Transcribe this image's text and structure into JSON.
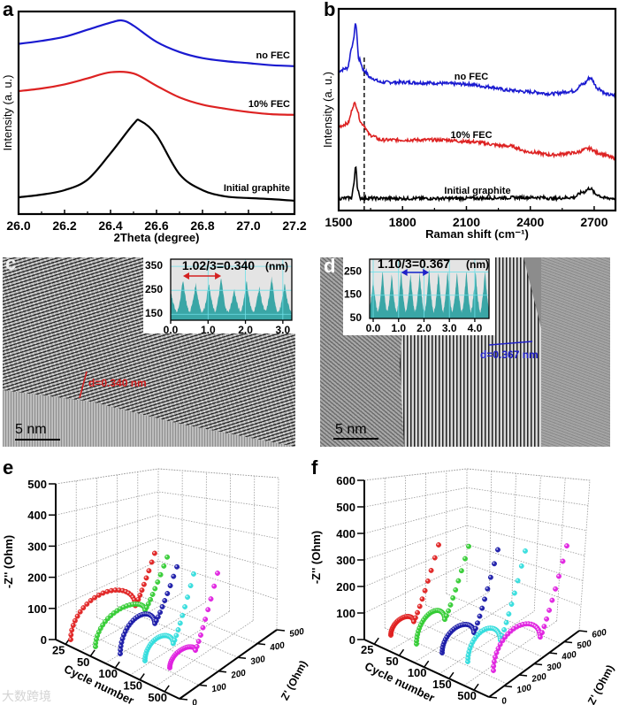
{
  "figure": {
    "panel_labels": {
      "a": "a",
      "b": "b",
      "c": "c",
      "d": "d",
      "e": "e",
      "f": "f"
    },
    "watermark": "大数跨境"
  },
  "tem": {
    "c": {
      "annotation": "d=0.340 nm",
      "scale_bar": "5 nm",
      "annotation_color": "#d42020"
    },
    "d": {
      "annotation": "d=0.367 nm",
      "scale_bar": "5 nm",
      "annotation_color": "#2020c8"
    }
  },
  "chart_data": [
    {
      "id": "a",
      "type": "line",
      "xlabel": "2Theta (degree)",
      "ylabel": "Intensity (a. u.)",
      "xlim": [
        26.0,
        27.2
      ],
      "ylim": [
        0,
        100
      ],
      "xticks": [
        {
          "value": 26.0,
          "label": "26.0"
        },
        {
          "value": 26.2,
          "label": "26.2"
        },
        {
          "value": 26.4,
          "label": "26.4"
        },
        {
          "value": 26.6,
          "label": "26.6"
        },
        {
          "value": 26.8,
          "label": "26.8"
        },
        {
          "value": 27.0,
          "label": "27.0"
        },
        {
          "value": 27.2,
          "label": "27.2"
        }
      ],
      "series": [
        {
          "name": "no FEC",
          "color": "#1a1ad0",
          "points": [
            [
              26.0,
              84
            ],
            [
              26.1,
              85.5
            ],
            [
              26.2,
              87.5
            ],
            [
              26.3,
              91
            ],
            [
              26.4,
              94.5
            ],
            [
              26.45,
              95.6
            ],
            [
              26.5,
              93
            ],
            [
              26.6,
              85
            ],
            [
              26.7,
              80
            ],
            [
              26.8,
              77
            ],
            [
              26.9,
              75.5
            ],
            [
              27.0,
              74.5
            ],
            [
              27.1,
              73.5
            ],
            [
              27.2,
              73
            ]
          ]
        },
        {
          "name": "10% FEC",
          "color": "#dd2222",
          "points": [
            [
              26.0,
              60.7
            ],
            [
              26.1,
              62
            ],
            [
              26.2,
              64
            ],
            [
              26.3,
              67
            ],
            [
              26.4,
              70
            ],
            [
              26.5,
              69.4
            ],
            [
              26.6,
              63.3
            ],
            [
              26.7,
              57.6
            ],
            [
              26.8,
              54
            ],
            [
              26.9,
              52
            ],
            [
              27.0,
              50.4
            ],
            [
              27.1,
              49.3
            ],
            [
              27.2,
              49
            ]
          ]
        },
        {
          "name": "Initial graphite",
          "color": "#000000",
          "points": [
            [
              26.0,
              8.3
            ],
            [
              26.1,
              9.6
            ],
            [
              26.2,
              11.8
            ],
            [
              26.3,
              17
            ],
            [
              26.4,
              30
            ],
            [
              26.5,
              44.5
            ],
            [
              26.53,
              46
            ],
            [
              26.6,
              38.9
            ],
            [
              26.7,
              19.7
            ],
            [
              26.8,
              11.8
            ],
            [
              26.9,
              8.7
            ],
            [
              27.0,
              7.9
            ],
            [
              27.1,
              7.4
            ],
            [
              27.2,
              6.6
            ]
          ]
        }
      ]
    },
    {
      "id": "b",
      "type": "line",
      "xlabel": "Raman shift (cm⁻¹)",
      "ylabel": "Intensity (a. u.)",
      "xlim": [
        1500,
        2800
      ],
      "ylim": [
        0,
        100
      ],
      "dashed_line_x": 1620,
      "xticks": [
        {
          "value": 1500,
          "label": "1500"
        },
        {
          "value": 1800,
          "label": "1800"
        },
        {
          "value": 2100,
          "label": "2100"
        },
        {
          "value": 2400,
          "label": "2400"
        },
        {
          "value": 2700,
          "label": "2700"
        }
      ],
      "series": [
        {
          "name": "no FEC",
          "color": "#1a1ad0",
          "points": [
            [
              1500,
              69.3
            ],
            [
              1540,
              70.6
            ],
            [
              1565,
              82
            ],
            [
              1580,
              92.5
            ],
            [
              1595,
              75
            ],
            [
              1620,
              69.3
            ],
            [
              1650,
              65.8
            ],
            [
              1700,
              63.6
            ],
            [
              1800,
              63.6
            ],
            [
              1900,
              63.3
            ],
            [
              2100,
              62.7
            ],
            [
              2200,
              61.4
            ],
            [
              2300,
              59.6
            ],
            [
              2400,
              58.8
            ],
            [
              2500,
              57.9
            ],
            [
              2600,
              59.2
            ],
            [
              2650,
              62.7
            ],
            [
              2680,
              65.8
            ],
            [
              2720,
              60.5
            ],
            [
              2760,
              57.5
            ],
            [
              2800,
              57
            ]
          ]
        },
        {
          "name": "10% FEC",
          "color": "#dd2222",
          "points": [
            [
              1500,
              41.7
            ],
            [
              1540,
              43
            ],
            [
              1575,
              53
            ],
            [
              1610,
              43
            ],
            [
              1650,
              37.3
            ],
            [
              1700,
              35
            ],
            [
              2000,
              35
            ],
            [
              2100,
              34.2
            ],
            [
              2300,
              32
            ],
            [
              2400,
              29
            ],
            [
              2500,
              27.6
            ],
            [
              2600,
              28.5
            ],
            [
              2680,
              30.7
            ],
            [
              2720,
              28.5
            ],
            [
              2800,
              25.9
            ]
          ]
        },
        {
          "name": "Initial graphite",
          "color": "#000000",
          "points": [
            [
              1500,
              6
            ],
            [
              1560,
              6.3
            ],
            [
              1570,
              12
            ],
            [
              1580,
              22.4
            ],
            [
              1590,
              10
            ],
            [
              1600,
              6.2
            ],
            [
              1700,
              6
            ],
            [
              2000,
              6
            ],
            [
              2450,
              6.5
            ],
            [
              2500,
              6
            ],
            [
              2600,
              6.5
            ],
            [
              2650,
              9.2
            ],
            [
              2680,
              11
            ],
            [
              2710,
              8
            ],
            [
              2750,
              6.2
            ],
            [
              2800,
              6
            ]
          ]
        }
      ]
    },
    {
      "id": "c-inset",
      "type": "area",
      "title": "1.02/3=0.340",
      "unit": "(nm)",
      "xlim": [
        0,
        3.24
      ],
      "ylim": [
        125,
        380
      ],
      "fill": "#3aa6a6",
      "arrow_color": "#d42020",
      "arrow_range": [
        0.33,
        1.35
      ],
      "xticks": [
        {
          "value": 0,
          "label": "0.0"
        },
        {
          "value": 1,
          "label": "1.0"
        },
        {
          "value": 2,
          "label": "2.0"
        },
        {
          "value": 3,
          "label": "3.0"
        }
      ],
      "yticks": [
        {
          "value": 150,
          "label": "150"
        },
        {
          "value": 250,
          "label": "250"
        },
        {
          "value": 350,
          "label": "350"
        }
      ],
      "period": 0.34,
      "base": 160,
      "peaks": [
        [
          0.0,
          245
        ],
        [
          0.33,
          300
        ],
        [
          0.67,
          280
        ],
        [
          1.02,
          280
        ],
        [
          1.35,
          305
        ],
        [
          1.7,
          255
        ],
        [
          2.03,
          290
        ],
        [
          2.37,
          265
        ],
        [
          2.7,
          305
        ],
        [
          3.05,
          280
        ]
      ]
    },
    {
      "id": "d-inset",
      "type": "area",
      "title": "1.10/3=0.367",
      "unit": "(nm)",
      "xlim": [
        -0.14,
        4.56
      ],
      "ylim": [
        50,
        305
      ],
      "fill": "#3aa6a6",
      "arrow_color": "#2020c8",
      "arrow_range": [
        1.1,
        2.2
      ],
      "xticks": [
        {
          "value": 0,
          "label": "0.0"
        },
        {
          "value": 1,
          "label": "1.0"
        },
        {
          "value": 2,
          "label": "2.0"
        },
        {
          "value": 3,
          "label": "3.0"
        },
        {
          "value": 4,
          "label": "4.0"
        }
      ],
      "yticks": [
        {
          "value": 50,
          "label": "50"
        },
        {
          "value": 150,
          "label": "150"
        },
        {
          "value": 250,
          "label": "250"
        }
      ],
      "period": 0.367,
      "base": 80,
      "peaks": [
        [
          0.0,
          220
        ],
        [
          0.37,
          255
        ],
        [
          0.73,
          245
        ],
        [
          1.1,
          260
        ],
        [
          1.47,
          245
        ],
        [
          1.83,
          250
        ],
        [
          2.2,
          265
        ],
        [
          2.57,
          255
        ],
        [
          2.93,
          260
        ],
        [
          3.3,
          250
        ],
        [
          3.67,
          255
        ],
        [
          4.03,
          255
        ],
        [
          4.4,
          260
        ]
      ]
    },
    {
      "id": "e",
      "type": "scatter3d",
      "xlabel": "Cycle number",
      "ylabel": "Z' (Ohm)",
      "zlabel": "-Z'' (Ohm)",
      "cycle_labels": [
        "25",
        "50",
        "100",
        "150",
        "500"
      ],
      "zprime_ticks": [
        "0",
        "100",
        "200",
        "300",
        "400",
        "500"
      ],
      "zprime_max": 500,
      "vertical_ticks": [
        "0",
        "100",
        "200",
        "300",
        "400",
        "500"
      ],
      "vertical_max": 500,
      "series": [
        {
          "cycle": "25",
          "color": "#e02020",
          "Rct": 348,
          "arc_peak": 125,
          "arc_end": 60,
          "tail_end": [
            452,
            214
          ]
        },
        {
          "cycle": "50",
          "color": "#33cc33",
          "Rct": 267,
          "arc_peak": 103,
          "arc_end": 80,
          "tail_end": [
            386,
            234
          ]
        },
        {
          "cycle": "100",
          "color": "#1a1aa8",
          "Rct": 186,
          "arc_peak": 106,
          "arc_end": 71,
          "tail_end": [
            305,
            237
          ]
        },
        {
          "cycle": "150",
          "color": "#33dddd",
          "Rct": 152,
          "arc_peak": 66,
          "arc_end": 34,
          "tail_end": [
            262,
            243
          ]
        },
        {
          "cycle": "500",
          "color": "#e020e0",
          "Rct": 138,
          "arc_peak": 51,
          "arc_end": 37,
          "tail_end": [
            257,
            269
          ]
        }
      ]
    },
    {
      "id": "f",
      "type": "scatter3d",
      "xlabel": "Cycle number",
      "ylabel": "Z' (Ohm)",
      "zlabel": "-Z'' (Ohm)",
      "cycle_labels": [
        "25",
        "50",
        "100",
        "150",
        "500"
      ],
      "zprime_ticks": [
        "0",
        "100",
        "200",
        "300",
        "400",
        "500",
        "600"
      ],
      "zprime_max": 600,
      "vertical_ticks": [
        "0",
        "100",
        "200",
        "300",
        "400",
        "500",
        "600"
      ],
      "vertical_max": 600,
      "series": [
        {
          "cycle": "25",
          "color": "#e02020",
          "Rct": 144,
          "arc_peak": 53,
          "arc_end": 27,
          "tail_end": [
            300,
            290
          ]
        },
        {
          "cycle": "50",
          "color": "#33cc33",
          "Rct": 178,
          "arc_peak": 103,
          "arc_end": 63,
          "tail_end": [
            328,
            313
          ]
        },
        {
          "cycle": "100",
          "color": "#1a1aa8",
          "Rct": 200,
          "arc_peak": 83,
          "arc_end": 43,
          "tail_end": [
            350,
            330
          ]
        },
        {
          "cycle": "150",
          "color": "#33dddd",
          "Rct": 205,
          "arc_peak": 103,
          "arc_end": 47,
          "tail_end": [
            361,
            357
          ]
        },
        {
          "cycle": "500",
          "color": "#e020e0",
          "Rct": 294,
          "arc_peak": 140,
          "arc_end": 77,
          "tail_end": [
            461,
            393
          ]
        }
      ]
    }
  ]
}
